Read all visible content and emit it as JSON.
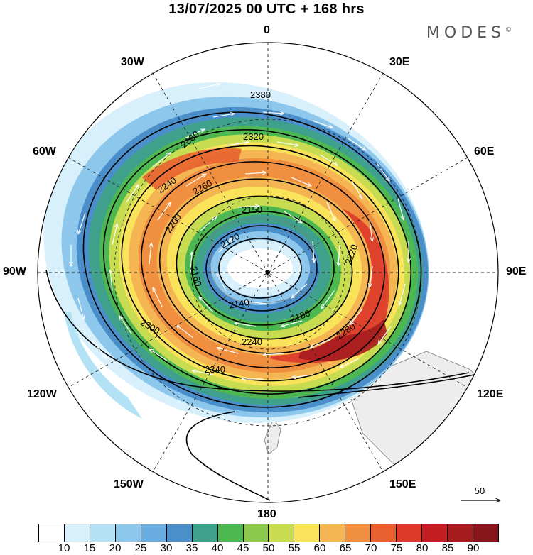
{
  "title": "13/07/2025  00 UTC  + 168 hrs",
  "brand": "MODES",
  "brand_mark": "©",
  "longitude_labels": {
    "top": "0",
    "bottom": "180",
    "left": "90W",
    "right": "90E",
    "nw30": "30W",
    "ne30": "30E",
    "nw60": "60W",
    "ne60": "60E",
    "sw120": "120W",
    "se120": "120E",
    "sw150": "150W",
    "se150": "150E"
  },
  "contour_labels": [
    "2380",
    "2360",
    "2320",
    "2240",
    "2260",
    "2150",
    "2120",
    "2200",
    "2160",
    "2140",
    "2220",
    "2180",
    "2300",
    "2340",
    "2280",
    "2240"
  ],
  "reference_vector": {
    "value": "50"
  },
  "colorbar": {
    "colors": [
      "#ffffff",
      "#d7f0fb",
      "#b3e2f5",
      "#8dc7ec",
      "#68ace0",
      "#4a8fca",
      "#3fa08c",
      "#4db852",
      "#8cc84b",
      "#c8dc52",
      "#f8e35a",
      "#f5b552",
      "#f08f40",
      "#e8602f",
      "#dc3a2a",
      "#c31d22",
      "#a61b1e",
      "#86161b"
    ],
    "ticks": [
      "10",
      "15",
      "20",
      "25",
      "30",
      "35",
      "40",
      "45",
      "50",
      "55",
      "60",
      "65",
      "70",
      "75",
      "80",
      "85",
      "90"
    ]
  },
  "colors": {
    "land": "#ededed",
    "coast": "#7a7a7a",
    "grid": "#222222",
    "contour": "#000000",
    "vector": "#ffffff"
  }
}
